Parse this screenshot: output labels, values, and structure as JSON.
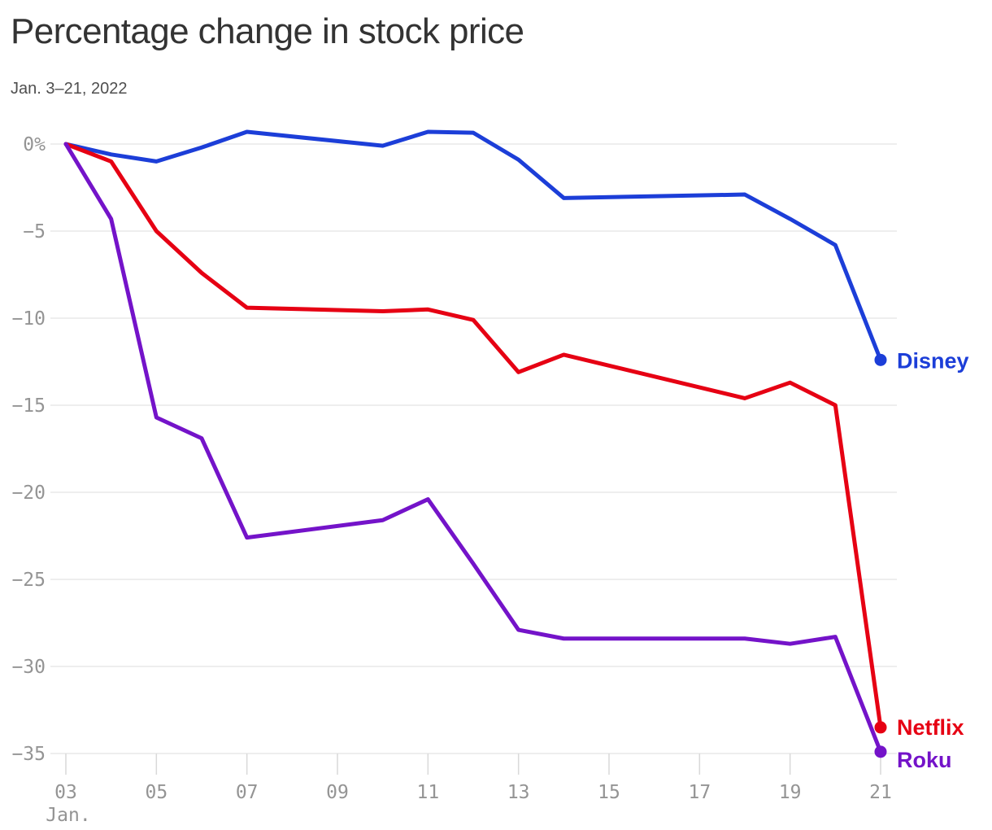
{
  "header": {
    "title": "Percentage change in stock price",
    "subtitle": "Jan. 3–21, 2022"
  },
  "chart_data": {
    "type": "line",
    "title": "Percentage change in stock price",
    "subtitle": "Jan. 3–21, 2022",
    "xlabel": "Jan.",
    "ylabel": "",
    "x_unit": "day of January 2022 (calendar-linear axis, trading days only have points)",
    "x": [
      3,
      4,
      5,
      6,
      7,
      10,
      11,
      12,
      13,
      14,
      18,
      19,
      20,
      21
    ],
    "series": [
      {
        "name": "Disney",
        "color": "#1c3ed8",
        "values": [
          0,
          -0.6,
          -1.0,
          -0.2,
          0.7,
          -0.1,
          0.7,
          0.65,
          -0.9,
          -3.1,
          -2.9,
          -4.3,
          -5.8,
          -12.4
        ]
      },
      {
        "name": "Netflix",
        "color": "#e60013",
        "values": [
          0,
          -1.0,
          -5.0,
          -7.4,
          -9.4,
          -9.6,
          -9.5,
          -10.1,
          -13.1,
          -12.1,
          -14.6,
          -13.7,
          -15.0,
          -33.5
        ]
      },
      {
        "name": "Roku",
        "color": "#7413c9",
        "values": [
          0,
          -4.3,
          -15.7,
          -16.9,
          -22.6,
          -21.6,
          -20.4,
          -24.1,
          -27.9,
          -28.4,
          -28.4,
          -28.7,
          -28.3,
          -34.9
        ]
      }
    ],
    "y_ticks": [
      {
        "value": 0,
        "label": "0%"
      },
      {
        "value": -5,
        "label": "−5"
      },
      {
        "value": -10,
        "label": "−10"
      },
      {
        "value": -15,
        "label": "−15"
      },
      {
        "value": -20,
        "label": "−20"
      },
      {
        "value": -25,
        "label": "−25"
      },
      {
        "value": -30,
        "label": "−30"
      },
      {
        "value": -35,
        "label": "−35"
      }
    ],
    "x_ticks": [
      {
        "value": 3,
        "label": "03"
      },
      {
        "value": 5,
        "label": "05"
      },
      {
        "value": 7,
        "label": "07"
      },
      {
        "value": 9,
        "label": "09"
      },
      {
        "value": 11,
        "label": "11"
      },
      {
        "value": 13,
        "label": "13"
      },
      {
        "value": 15,
        "label": "15"
      },
      {
        "value": 17,
        "label": "17"
      },
      {
        "value": 19,
        "label": "19"
      },
      {
        "value": 21,
        "label": "21"
      }
    ],
    "x_axis_note": "Jan.",
    "xlim": [
      3,
      21
    ],
    "ylim": [
      -35,
      0
    ],
    "grid": "horizontal",
    "legend": "line-end labels with dots"
  },
  "colors": {
    "background": "#ffffff",
    "grid": "#e9e9e9",
    "tick": "#d9d9d9",
    "axis_text": "#949494",
    "title_text": "#333333",
    "subtitle_text": "#4f4f4f",
    "disney_blue": "#1c3ed8",
    "netflix_red": "#e60013",
    "roku_purple": "#7413c9"
  }
}
